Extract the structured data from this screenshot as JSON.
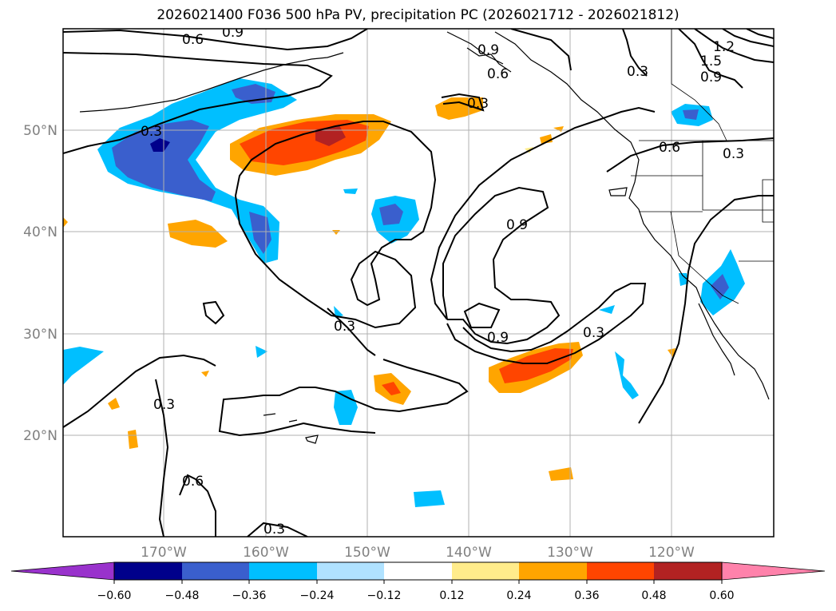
{
  "title": "2026021400 F036 500 hPa PV, precipitation PC (2026021712 - 2026021812)",
  "map": {
    "lat_labels": [
      "50°N",
      "40°N",
      "30°N",
      "20°N"
    ],
    "lon_labels": [
      "170°W",
      "160°W",
      "150°W",
      "140°W",
      "130°W",
      "120°W"
    ],
    "contour_labels": [
      "0.6",
      "0.9",
      "0.9",
      "0.6",
      "0.3",
      "1.2",
      "1.5",
      "0.9",
      "0.3",
      "0.3",
      "0.6",
      "0.3",
      "0.9",
      "0.3",
      "0.9",
      "0.3",
      "0.3",
      "0.6",
      "0.3"
    ]
  },
  "colorbar": {
    "colors": [
      "#9932cc",
      "#00008b",
      "#3a5fcd",
      "#00bfff",
      "#b0e2ff",
      "#ffffff",
      "#ffec8b",
      "#ffa500",
      "#ff4500",
      "#b22222",
      "#ff82ab"
    ],
    "tick_labels": [
      "−0.60",
      "−0.48",
      "−0.36",
      "−0.24",
      "−0.12",
      "0.12",
      "0.24",
      "0.36",
      "0.48",
      "0.60"
    ]
  }
}
